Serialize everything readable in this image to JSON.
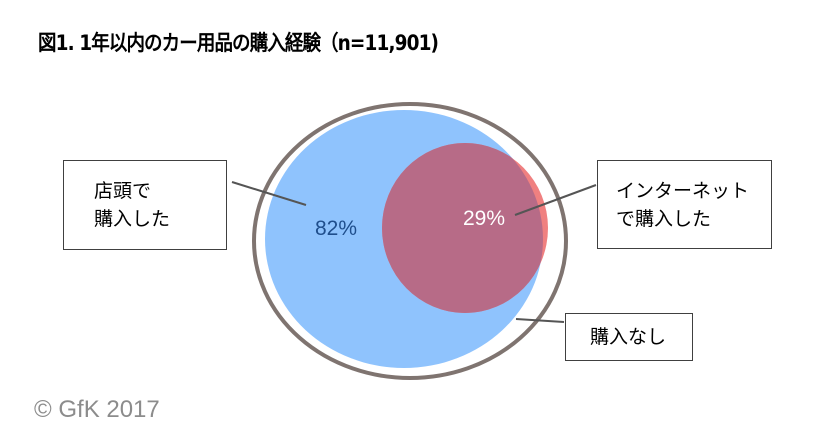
{
  "title": "図1. 1年以内のカー用品の購入経験（n=11,901)",
  "copyright": "© GfK 2017",
  "chart_data": {
    "type": "venn",
    "title": "図1. 1年以内のカー用品の購入経験（n=11,901)",
    "n": 11901,
    "sets": [
      {
        "label": "店頭で\n購入した",
        "line1": "店頭で",
        "line2": "購入した",
        "value": 82,
        "value_label": "82%",
        "color": "#8fc3fd"
      },
      {
        "label": "インターネット\nで購入した",
        "line1": "インターネット",
        "line2": "で購入した",
        "value": 29,
        "value_label": "29%",
        "color": "#f08080",
        "overlap_color": "#b76b87"
      },
      {
        "label": "購入なし",
        "line1": "購入なし",
        "color": "#ffffff",
        "outline": "#7f7470"
      }
    ]
  }
}
